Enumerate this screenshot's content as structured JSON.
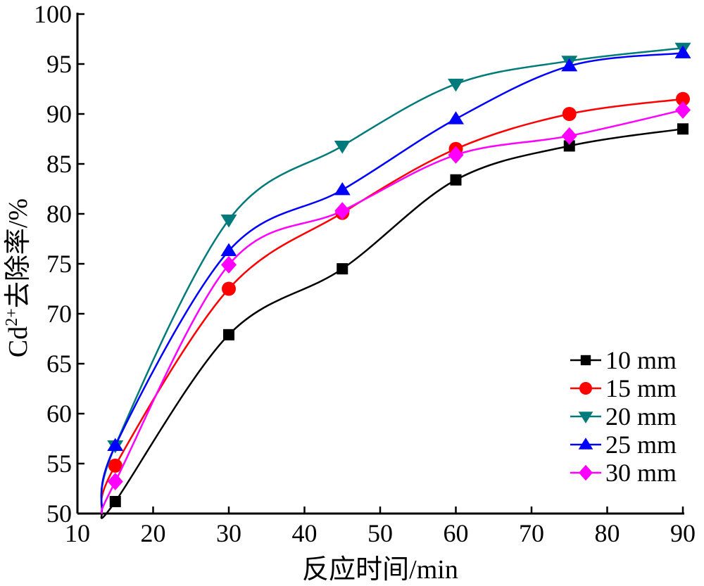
{
  "chart_data": {
    "type": "line",
    "title": "",
    "xlabel": "反应时间/min",
    "ylabel_main": "Cd",
    "ylabel_sup": "2+",
    "ylabel_rest": "去除率/%",
    "xlim": [
      10,
      90
    ],
    "ylim": [
      50,
      100
    ],
    "xticks": [
      10,
      20,
      30,
      40,
      50,
      60,
      70,
      80,
      90
    ],
    "yticks": [
      50,
      55,
      60,
      65,
      70,
      75,
      80,
      85,
      90,
      95,
      100
    ],
    "grid": false,
    "legend_position": "bottom-right",
    "x": [
      15,
      30,
      45,
      60,
      75,
      90
    ],
    "series": [
      {
        "name": "10 mm",
        "color": "#000000",
        "marker": "square",
        "values": [
          51.2,
          67.9,
          74.5,
          83.4,
          86.8,
          88.5
        ]
      },
      {
        "name": "15 mm",
        "color": "#ff0000",
        "marker": "circle",
        "values": [
          54.8,
          72.5,
          80.1,
          86.5,
          90.0,
          91.5
        ]
      },
      {
        "name": "20 mm",
        "color": "#007a7a",
        "marker": "triangle-down",
        "values": [
          56.8,
          79.4,
          86.8,
          93.0,
          95.3,
          96.6
        ]
      },
      {
        "name": "25 mm",
        "color": "#0000ff",
        "marker": "triangle-up",
        "values": [
          56.8,
          76.3,
          82.4,
          89.5,
          94.8,
          96.1
        ]
      },
      {
        "name": "30 mm",
        "color": "#ff00ff",
        "marker": "diamond",
        "values": [
          53.2,
          74.9,
          80.3,
          85.9,
          87.8,
          90.4
        ]
      }
    ]
  }
}
